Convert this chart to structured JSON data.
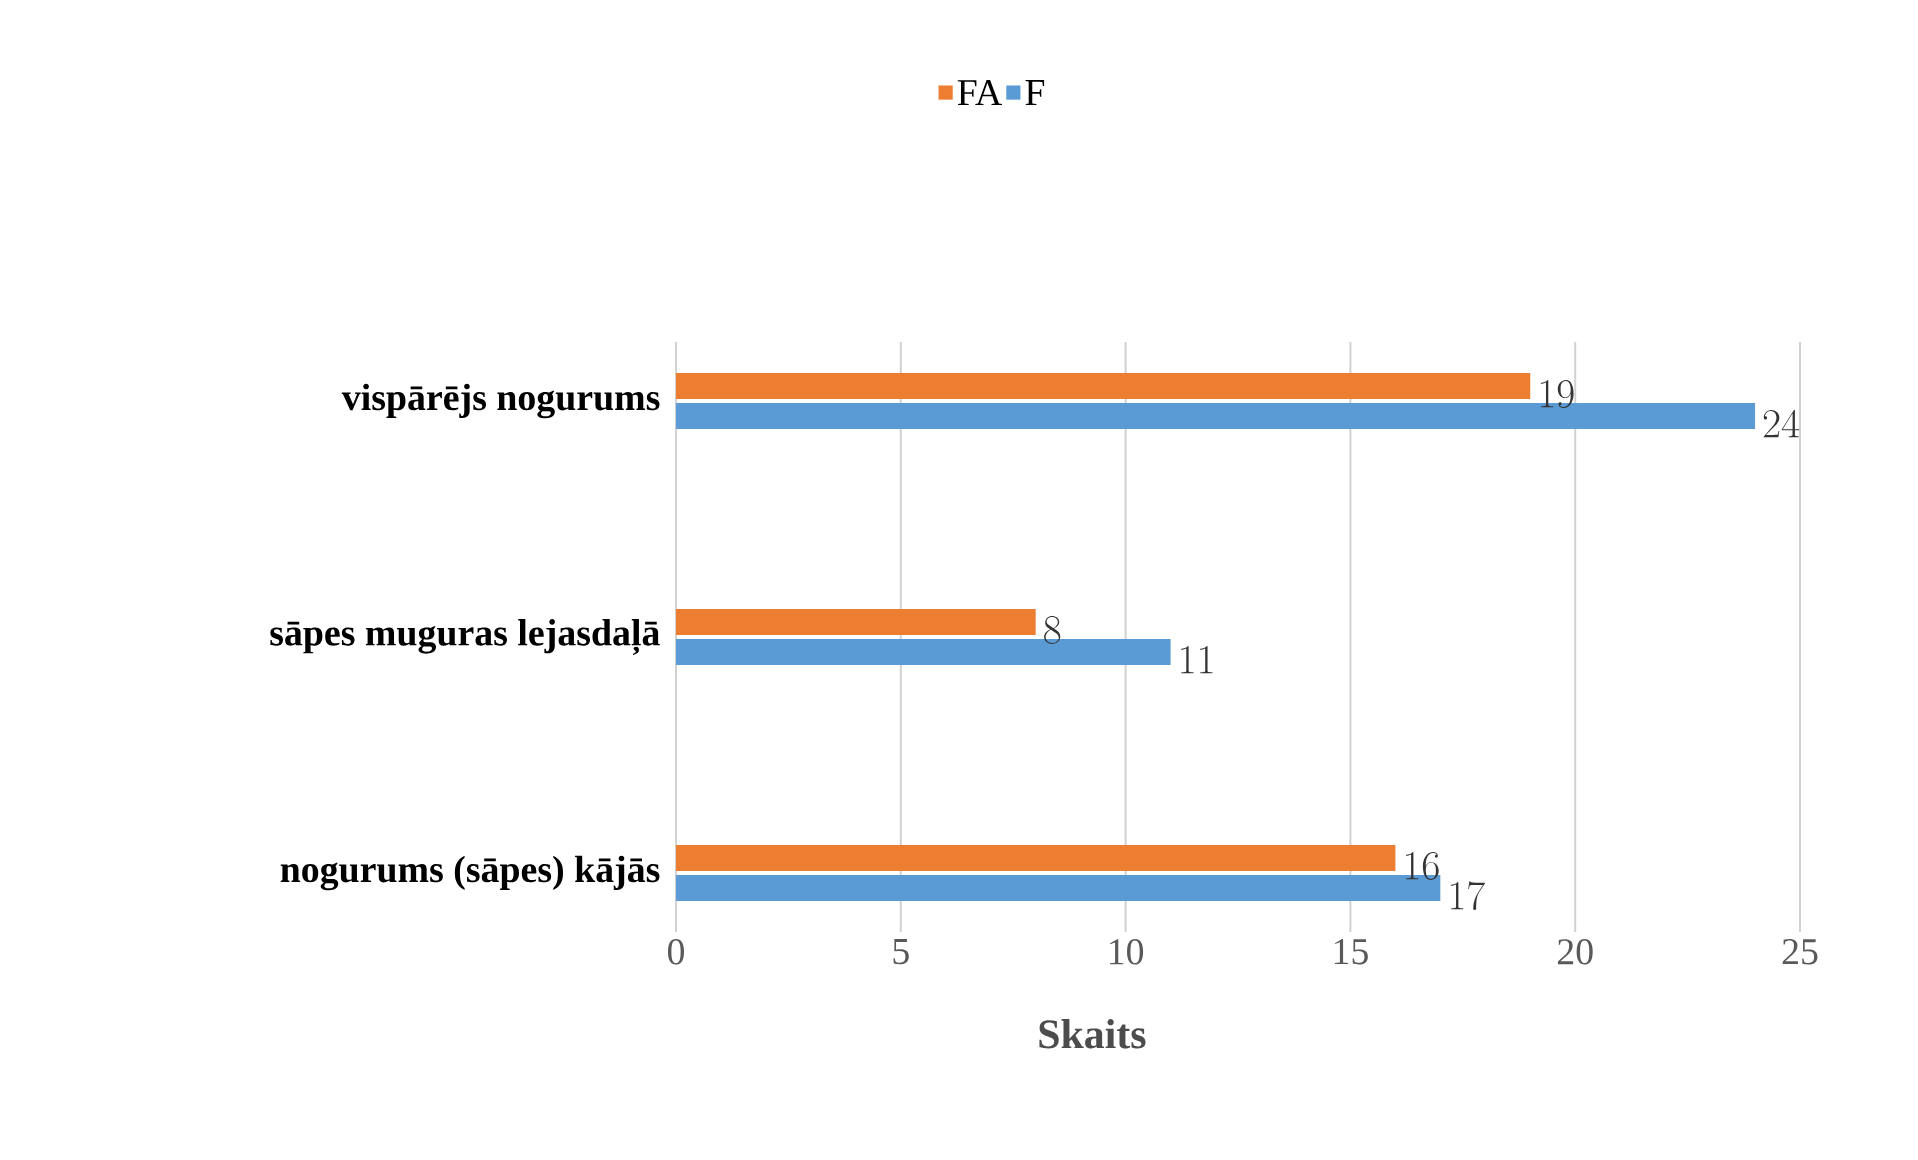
{
  "chart_data": {
    "type": "bar",
    "orientation": "horizontal",
    "categories": [
      "vispārējs nogurums",
      "sāpes muguras lejasdaļā",
      "nogurums (sāpes) kājās"
    ],
    "series": [
      {
        "name": "FA",
        "color": "#ed7d31",
        "values": [
          19,
          8,
          16
        ]
      },
      {
        "name": "F",
        "color": "#5b9bd5",
        "values": [
          24,
          11,
          17
        ]
      }
    ],
    "xlim": [
      0,
      25
    ],
    "xticks": [
      0,
      5,
      10,
      15,
      20,
      25
    ],
    "xlabel": "Skaits",
    "grid": "x",
    "legend": "top",
    "data_labels": true
  }
}
